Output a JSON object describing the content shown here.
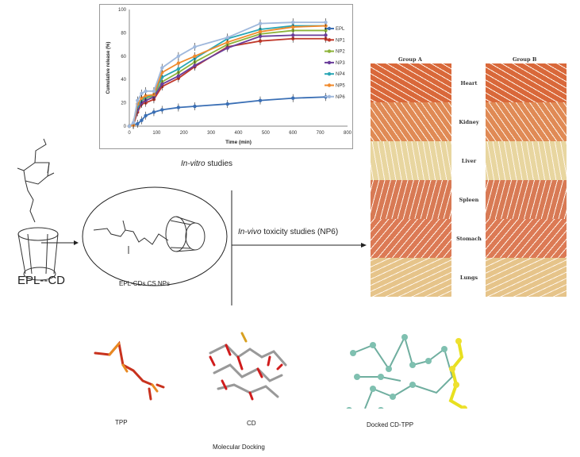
{
  "chart_data": {
    "type": "line",
    "xlabel": "Time (min)",
    "ylabel": "Cumulative release (%)",
    "xlim": [
      0,
      800
    ],
    "ylim": [
      0,
      100
    ],
    "xticks": [
      0,
      100,
      200,
      300,
      400,
      500,
      600,
      700,
      800
    ],
    "yticks": [
      0,
      20,
      40,
      60,
      80,
      100
    ],
    "grid": false,
    "legend": "right",
    "error_bars": true,
    "x": [
      0,
      15,
      30,
      45,
      60,
      90,
      120,
      180,
      240,
      360,
      480,
      600,
      720
    ],
    "series": [
      {
        "name": "EPL",
        "color": "#3a6fb5",
        "marker": "diamond",
        "values": [
          0,
          1,
          2,
          5,
          9,
          12,
          14,
          16,
          17,
          19,
          22,
          24,
          25
        ]
      },
      {
        "name": "NP1",
        "color": "#c0392b",
        "marker": "square",
        "values": [
          0,
          1,
          12,
          19,
          20,
          23,
          34,
          41,
          51,
          68,
          73,
          75,
          75
        ]
      },
      {
        "name": "NP2",
        "color": "#8db33a",
        "marker": "triangle",
        "values": [
          0,
          1,
          15,
          22,
          24,
          26,
          38,
          46,
          55,
          70,
          79,
          82,
          82
        ]
      },
      {
        "name": "NP3",
        "color": "#6a3d9a",
        "marker": "x",
        "values": [
          0,
          1,
          14,
          20,
          22,
          25,
          36,
          43,
          52,
          67,
          77,
          78,
          78
        ]
      },
      {
        "name": "NP4",
        "color": "#2aa6b5",
        "marker": "star",
        "values": [
          0,
          2,
          17,
          23,
          25,
          27,
          42,
          49,
          58,
          75,
          83,
          86,
          86
        ]
      },
      {
        "name": "NP5",
        "color": "#f08a2c",
        "marker": "circle",
        "values": [
          0,
          1,
          19,
          24,
          26,
          27,
          46,
          54,
          60,
          72,
          81,
          85,
          86
        ]
      },
      {
        "name": "NP6",
        "color": "#9fb8dc",
        "marker": "plus",
        "values": [
          0,
          3,
          22,
          28,
          30,
          30,
          50,
          60,
          68,
          76,
          88,
          89,
          89
        ]
      }
    ]
  },
  "captions": {
    "in_vitro_italic": "In-vitro",
    "in_vitro_rest": " studies",
    "in_vivo_italic": "In-vivo",
    "in_vivo_rest": " toxicity studies (NP6)",
    "epl_cd": "EPL--CD",
    "nps": "EPL-CDs CS NPs",
    "tpp": "TPP",
    "cd": "CD",
    "docked": "Docked CD-TPP",
    "docking": "Molecular Docking"
  },
  "histology": {
    "groups": [
      "Group A",
      "Group B"
    ],
    "organs": [
      {
        "name": "Heart",
        "color": "#d9683a"
      },
      {
        "name": "Kidney",
        "color": "#e08a55"
      },
      {
        "name": "Liver",
        "color": "#e8d6a0"
      },
      {
        "name": "Spleen",
        "color": "#d87a55"
      },
      {
        "name": "Stomach",
        "color": "#dc7a55"
      },
      {
        "name": "Lungs",
        "color": "#e6c48a"
      }
    ]
  }
}
